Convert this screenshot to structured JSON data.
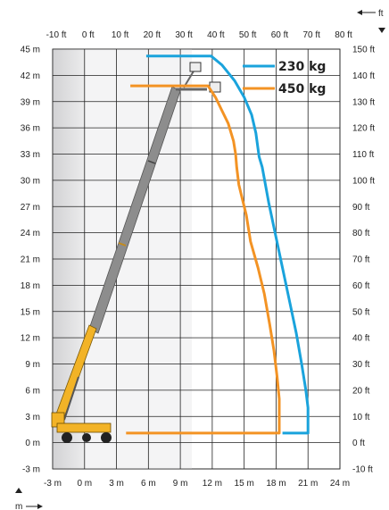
{
  "chart_data": {
    "type": "line",
    "title": "",
    "x_metric": {
      "unit_label": "m",
      "ticks": [
        "-3 m",
        "0 m",
        "3 m",
        "6 m",
        "9 m",
        "12 m",
        "15 m",
        "18 m",
        "21 m",
        "24 m"
      ],
      "range": [
        -3,
        24
      ]
    },
    "x_imperial": {
      "unit_label": "ft",
      "ticks": [
        "-10 ft",
        "0 ft",
        "10 ft",
        "20 ft",
        "30 ft",
        "40 ft",
        "50 ft",
        "60 ft",
        "70 ft",
        "80 ft"
      ],
      "range": [
        -10,
        80
      ]
    },
    "y_metric": {
      "ticks": [
        "-3 m",
        "0 m",
        "3 m",
        "6 m",
        "9 m",
        "12 m",
        "15 m",
        "18 m",
        "21 m",
        "24 m",
        "27 m",
        "30 m",
        "33 m",
        "36 m",
        "39 m",
        "42 m",
        "45 m"
      ],
      "range": [
        -3,
        45
      ]
    },
    "y_imperial": {
      "ticks": [
        "-10 ft",
        "0 ft",
        "10 ft",
        "20 ft",
        "30 ft",
        "40 ft",
        "50 ft",
        "60 ft",
        "70 ft",
        "80 ft",
        "90 ft",
        "100 ft",
        "110 ft",
        "120 ft",
        "130 ft",
        "140 ft",
        "150 ft"
      ],
      "range": [
        -10,
        150
      ]
    },
    "grid": true,
    "legend_position": "top-right",
    "series": [
      {
        "name": "230 kg",
        "color": "#1aa3dc",
        "points": [
          [
            5.8,
            44.2
          ],
          [
            11.9,
            44.2
          ],
          [
            12.9,
            43.2
          ],
          [
            14.1,
            41.4
          ],
          [
            15.0,
            39.5
          ],
          [
            15.7,
            37.5
          ],
          [
            16.1,
            35.4
          ],
          [
            16.4,
            32.7
          ],
          [
            16.7,
            31.5
          ],
          [
            17.3,
            27.5
          ],
          [
            17.9,
            24.0
          ],
          [
            18.6,
            20.0
          ],
          [
            19.3,
            16.0
          ],
          [
            19.9,
            12.5
          ],
          [
            20.4,
            9.0
          ],
          [
            20.8,
            6.0
          ],
          [
            21.0,
            4.0
          ],
          [
            21.0,
            1.1
          ],
          [
            18.6,
            1.1
          ]
        ]
      },
      {
        "name": "450 kg",
        "color": "#f39324",
        "points": [
          [
            4.3,
            40.8
          ],
          [
            11.6,
            40.8
          ],
          [
            12.3,
            39.5
          ],
          [
            12.9,
            38.0
          ],
          [
            13.5,
            36.5
          ],
          [
            14.0,
            34.5
          ],
          [
            14.2,
            33.0
          ],
          [
            14.3,
            31.5
          ],
          [
            14.5,
            29.5
          ],
          [
            14.8,
            28.0
          ],
          [
            15.2,
            26.0
          ],
          [
            15.6,
            23.0
          ],
          [
            16.3,
            20.0
          ],
          [
            16.9,
            17.0
          ],
          [
            17.4,
            13.5
          ],
          [
            17.8,
            10.5
          ],
          [
            18.1,
            7.5
          ],
          [
            18.3,
            5.0
          ],
          [
            18.3,
            1.1
          ],
          [
            3.9,
            1.1
          ]
        ]
      }
    ]
  }
}
